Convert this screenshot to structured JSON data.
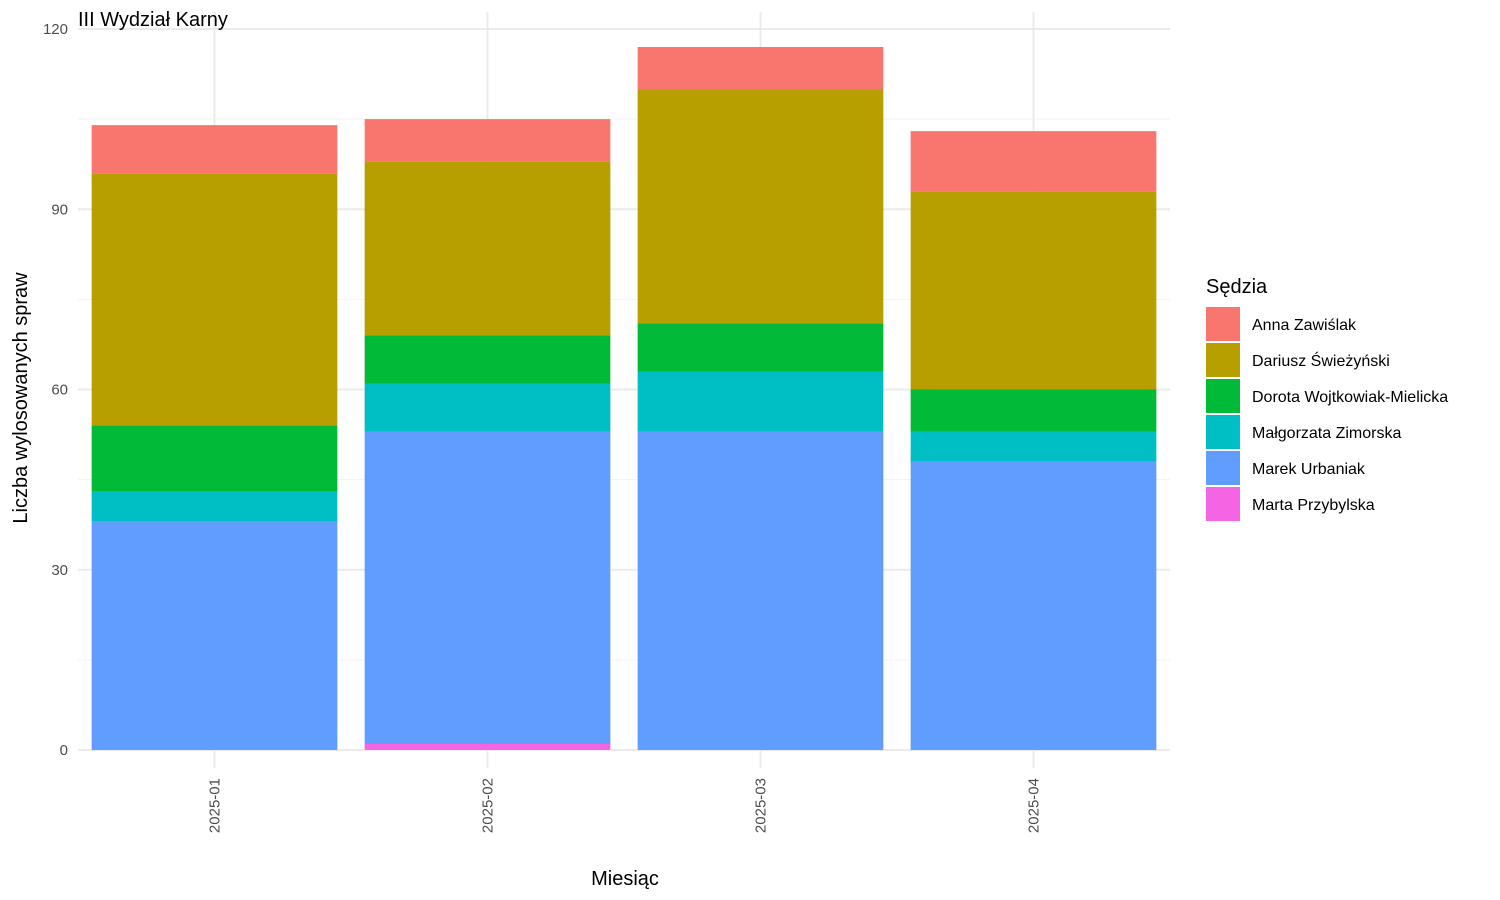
{
  "chart_data": {
    "type": "bar",
    "stacked": true,
    "title": "III Wydział Karny",
    "xlabel": "Miesiąc",
    "ylabel": "Liczba wylosowanych spraw",
    "ylim": [
      0,
      120
    ],
    "yticks": [
      0,
      30,
      60,
      90,
      120
    ],
    "grid": true,
    "legend": {
      "title": "Sędzia",
      "position": "right"
    },
    "categories": [
      "2025-01",
      "2025-02",
      "2025-03",
      "2025-04"
    ],
    "series": [
      {
        "name": "Marta Przybylska",
        "color": "#F564E3",
        "values": [
          0,
          1,
          0,
          0
        ]
      },
      {
        "name": "Marek Urbaniak",
        "color": "#619CFF",
        "values": [
          38,
          52,
          53,
          48
        ]
      },
      {
        "name": "Małgorzata Zimorska",
        "color": "#00BFC4",
        "values": [
          5,
          8,
          10,
          5
        ]
      },
      {
        "name": "Dorota Wojtkowiak-Mielicka",
        "color": "#00BA38",
        "values": [
          11,
          8,
          8,
          7
        ]
      },
      {
        "name": "Dariusz Świeżyński",
        "color": "#B79F00",
        "values": [
          42,
          29,
          39,
          33
        ]
      },
      {
        "name": "Anna Zawiślak",
        "color": "#F8766D",
        "values": [
          8,
          7,
          7,
          10
        ]
      }
    ],
    "legend_order": [
      "Anna Zawiślak",
      "Dariusz Świeżyński",
      "Dorota Wojtkowiak-Mielicka",
      "Małgorzata Zimorska",
      "Marek Urbaniak",
      "Marta Przybylska"
    ]
  }
}
